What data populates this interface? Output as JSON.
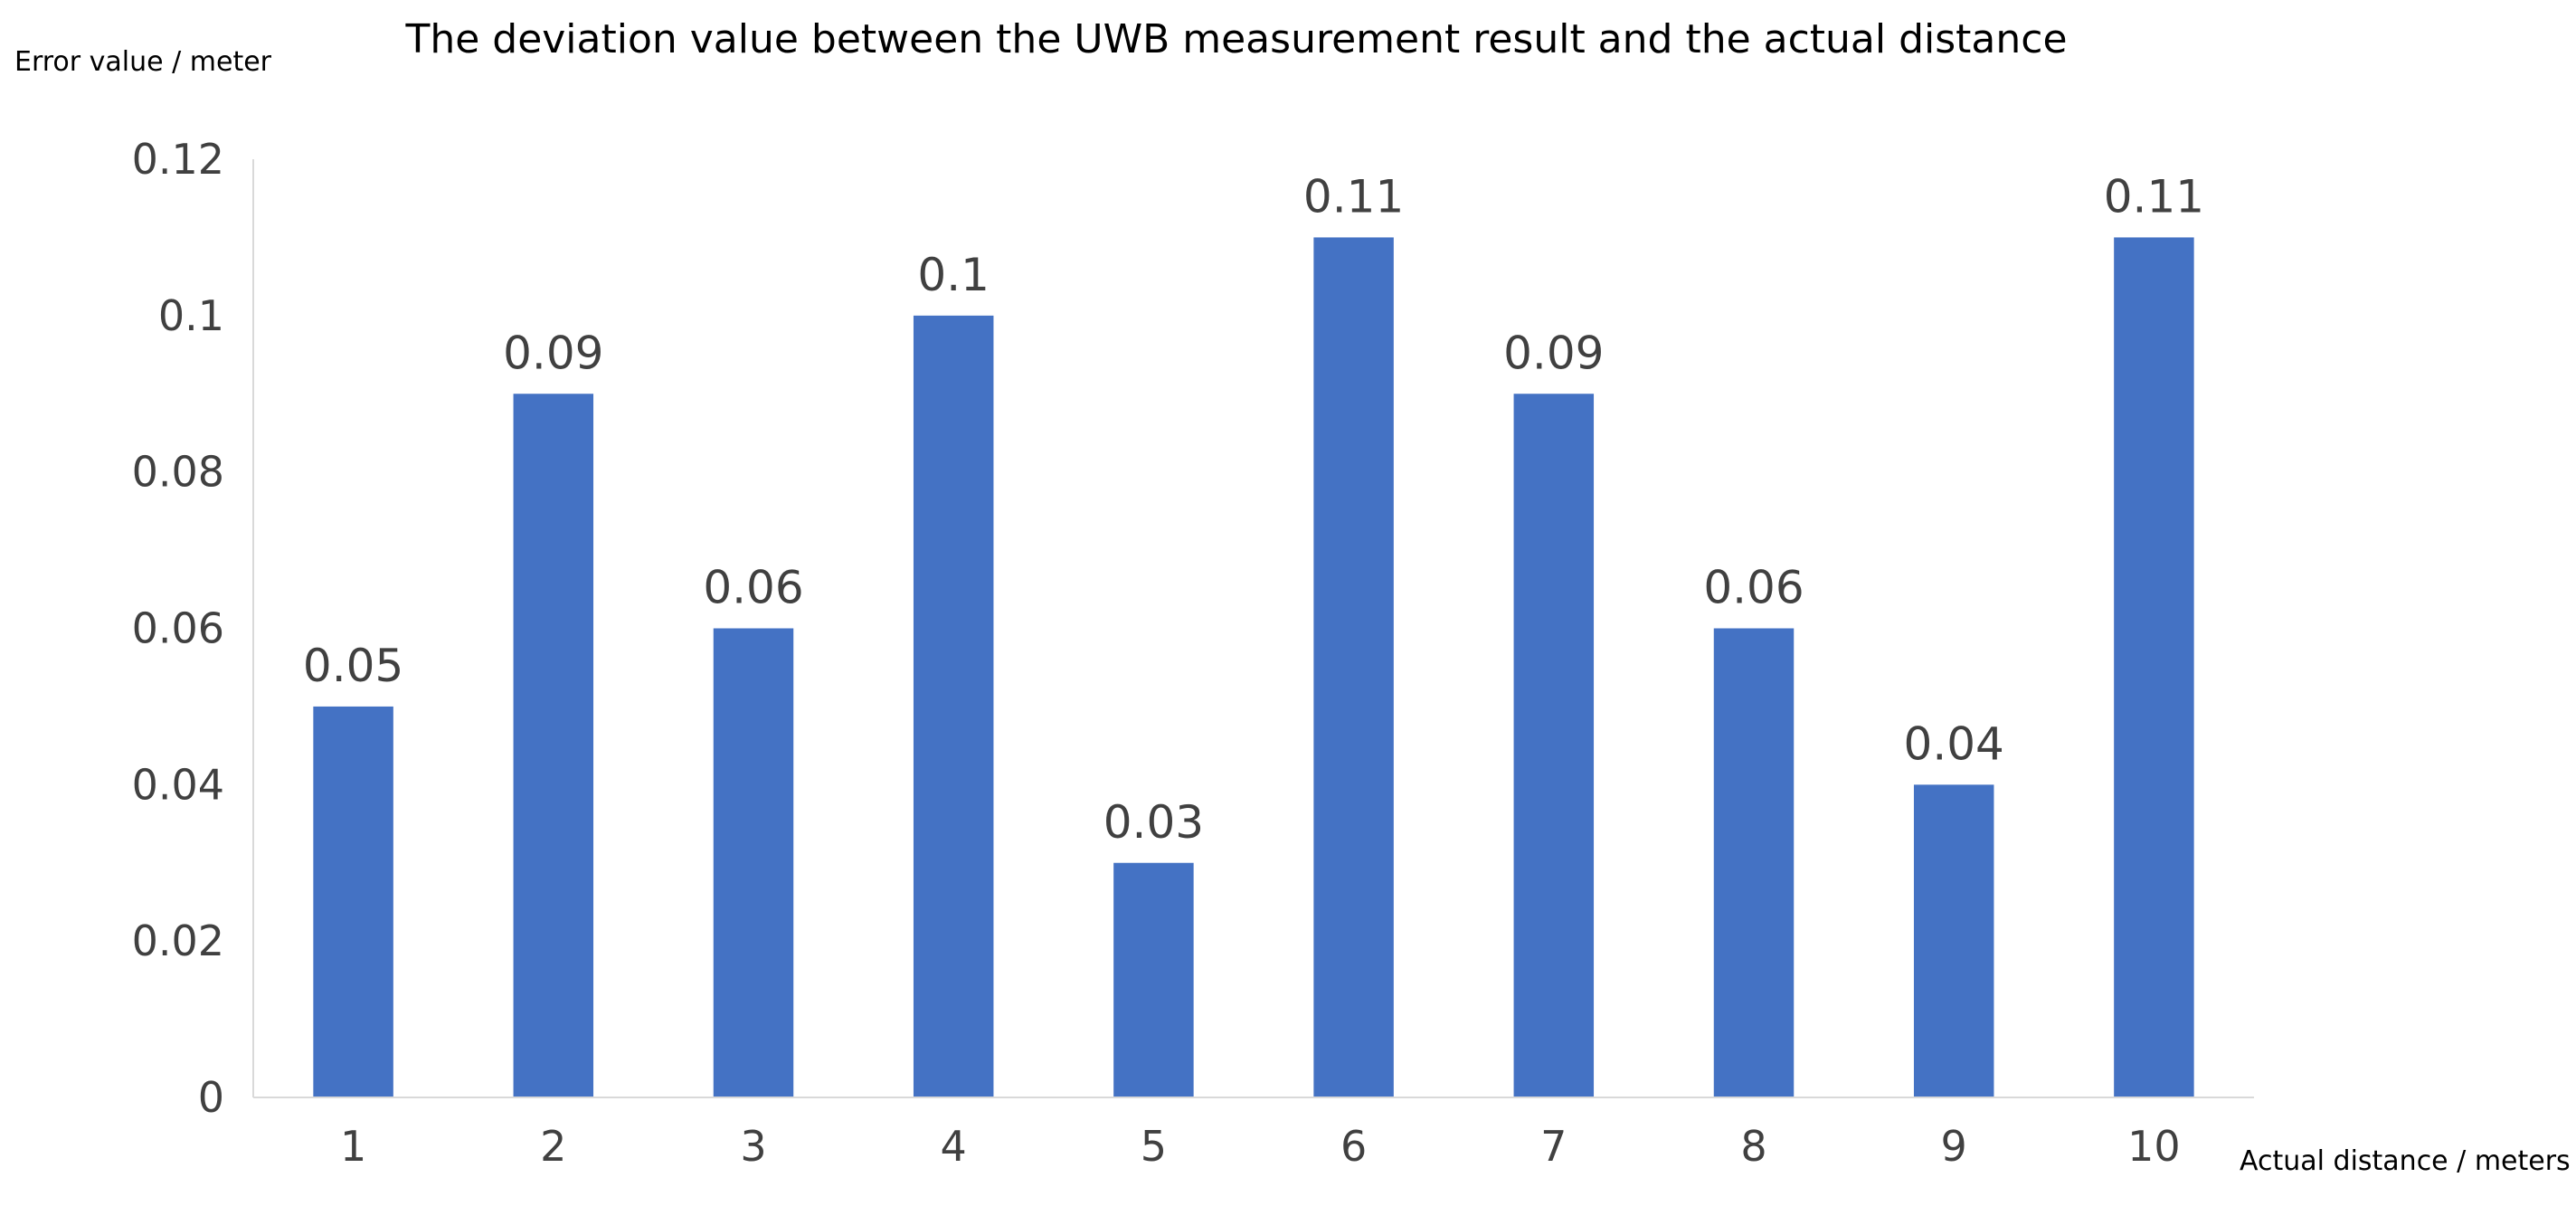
{
  "chart_data": {
    "type": "bar",
    "title": "The deviation value between the UWB measurement result and the actual distance",
    "xlabel": "Actual distance / meters",
    "ylabel": "Error value / meter",
    "categories": [
      "1",
      "2",
      "3",
      "4",
      "5",
      "6",
      "7",
      "8",
      "9",
      "10"
    ],
    "values": [
      0.05,
      0.09,
      0.06,
      0.1,
      0.03,
      0.11,
      0.09,
      0.06,
      0.04,
      0.11
    ],
    "data_labels": [
      "0.05",
      "0.09",
      "0.06",
      "0.1",
      "0.03",
      "0.11",
      "0.09",
      "0.06",
      "0.04",
      "0.11"
    ],
    "ylim": [
      0,
      0.12
    ],
    "yticks": [
      0,
      0.02,
      0.04,
      0.06,
      0.08,
      0.1,
      0.12
    ],
    "ytick_labels": [
      "0",
      "0.02",
      "0.04",
      "0.06",
      "0.08",
      "0.1",
      "0.12"
    ],
    "grid": false,
    "legend": "none",
    "colors": {
      "bar": "#4472C4",
      "text": "#404040",
      "axis": "#D9D9D9",
      "title": "#000000"
    }
  }
}
